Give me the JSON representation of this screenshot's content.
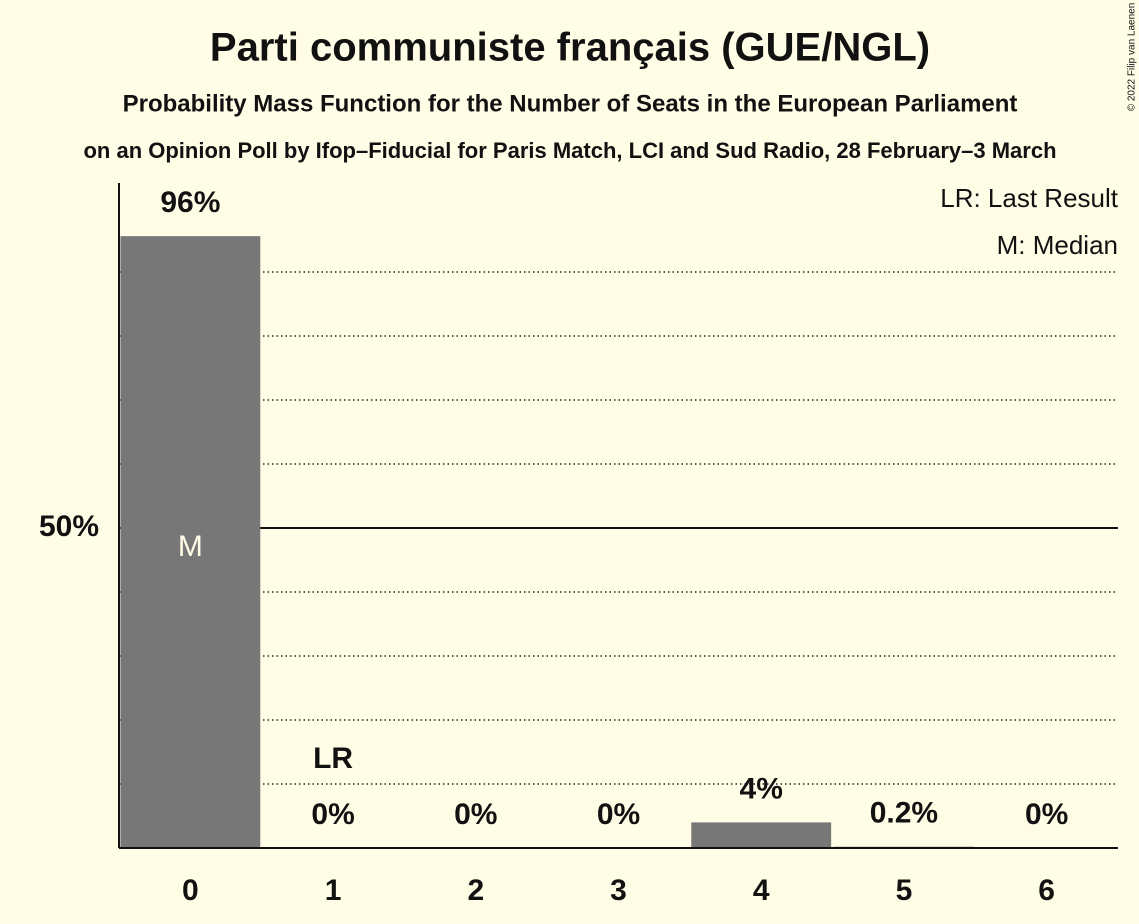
{
  "chart_data": {
    "type": "bar",
    "title": "Parti communiste français (GUE/NGL)",
    "subtitle": "Probability Mass Function for the Number of Seats in the European Parliament",
    "caption": "on an Opinion Poll by Ifop–Fiducial for Paris Match, LCI and Sud Radio, 28 February–3 March",
    "copyright": "© 2022 Filip van Laenen",
    "categories": [
      "0",
      "1",
      "2",
      "3",
      "4",
      "5",
      "6"
    ],
    "values": [
      95.6,
      0,
      0,
      0,
      4,
      0.2,
      0
    ],
    "value_labels": [
      "96%",
      "0%",
      "0%",
      "0%",
      "4%",
      "0.2%",
      "0%"
    ],
    "color": "#777777",
    "ylim": [
      0,
      100
    ],
    "yticks": [
      {
        "value": 50,
        "label": "50%"
      }
    ],
    "grid_lines": [
      10,
      20,
      30,
      40,
      60,
      70,
      80,
      90
    ],
    "grid": true,
    "median_label": "M",
    "median_index": 0,
    "last_result_label": "LR",
    "last_result_index": 1,
    "legend": [
      "LR: Last Result",
      "M: Median"
    ],
    "legend_position": "top-right"
  }
}
